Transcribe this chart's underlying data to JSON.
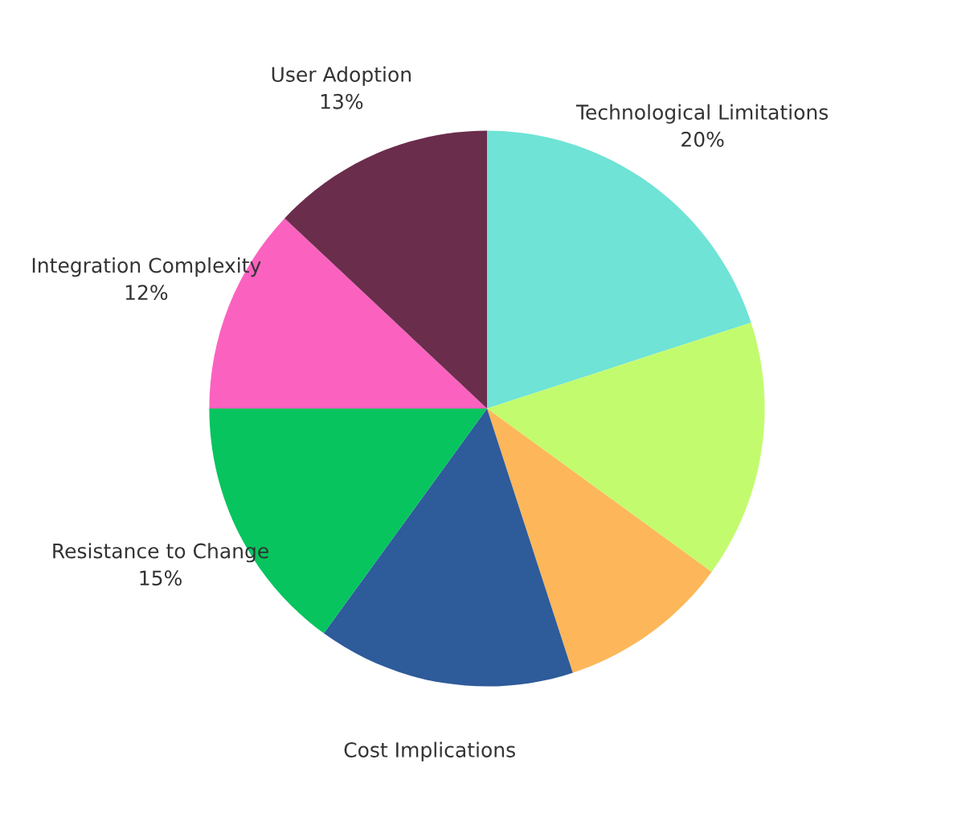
{
  "chart_data": {
    "type": "pie",
    "categories": [
      "Technological Limitations",
      null,
      null,
      "Cost Implications",
      "Resistance to Change",
      "Integration Complexity",
      "User Adoption"
    ],
    "values": [
      20,
      15,
      10,
      15,
      15,
      12,
      13
    ],
    "value_labels": [
      "20%",
      null,
      null,
      null,
      "15%",
      "12%",
      "13%"
    ],
    "colors": [
      "#6ee3d6",
      "#c3fb6e",
      "#fdb75a",
      "#2e5b9a",
      "#07c45e",
      "#fb62c0",
      "#6b2d4c"
    ]
  }
}
